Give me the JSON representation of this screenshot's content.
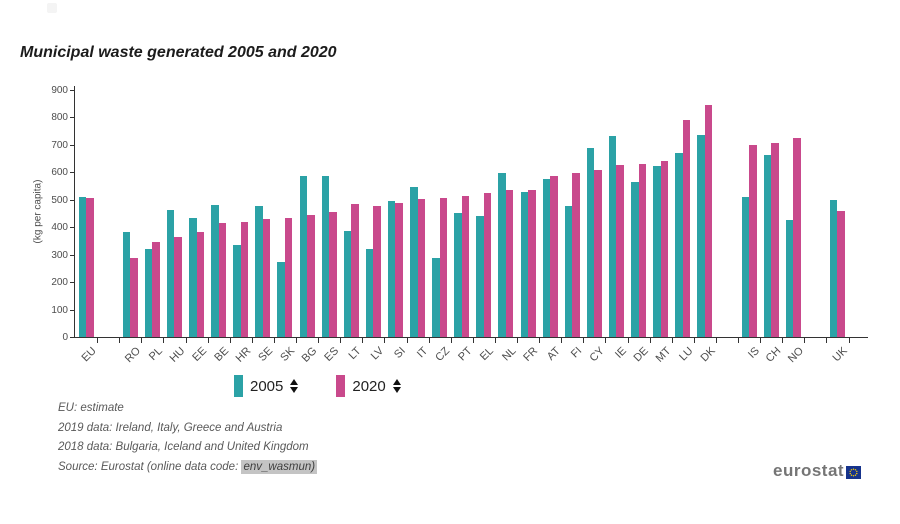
{
  "chart_data": {
    "type": "bar",
    "title": "Municipal waste generated 2005 and 2020",
    "xlabel": "",
    "ylabel": "(kg per capita)",
    "ylim": [
      0,
      900
    ],
    "ytick_step": 100,
    "grid": false,
    "legend_position": "bottom",
    "categories": [
      "EU",
      "RO",
      "PL",
      "HU",
      "EE",
      "BE",
      "HR",
      "SE",
      "SK",
      "BG",
      "ES",
      "LT",
      "LV",
      "SI",
      "IT",
      "CZ",
      "PT",
      "EL",
      "NL",
      "FR",
      "AT",
      "FI",
      "CY",
      "IE",
      "DE",
      "MT",
      "LU",
      "DK",
      "IS",
      "CH",
      "NO",
      "UK"
    ],
    "gaps_after": [
      "EU",
      "DK",
      "NO"
    ],
    "series": [
      {
        "name": "2005",
        "color": "#2BA2A6",
        "values": [
          510,
          383,
          319,
          461,
          433,
          482,
          336,
          477,
          273,
          588,
          588,
          387,
          320,
          494,
          546,
          289,
          452,
          442,
          599,
          530,
          575,
          478,
          688,
          731,
          565,
          623,
          672,
          736,
          512,
          663,
          426,
          500
        ]
      },
      {
        "name": "2020",
        "color": "#C9498C",
        "values": [
          505,
          287,
          346,
          364,
          383,
          416,
          418,
          431,
          433,
          445,
          455,
          483,
          478,
          487,
          504,
          507,
          513,
          524,
          534,
          537,
          588,
          596,
          609,
          625,
          632,
          643,
          790,
          845,
          700,
          706,
          726,
          458
        ]
      }
    ]
  },
  "legend": {
    "sort_icon": "sort-up-down-triangles"
  },
  "footnotes": {
    "notes": [
      "EU: estimate",
      "2019 data: Ireland, Italy, Greece and Austria",
      "2018 data: Bulgaria, Iceland and United Kingdom"
    ],
    "source_prefix": "Source: Eurostat (online data code: ",
    "source_code": "env_wasmun)"
  },
  "branding": {
    "logo_text": "eurostat"
  }
}
